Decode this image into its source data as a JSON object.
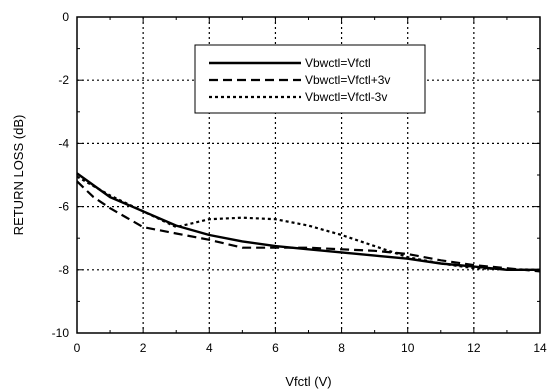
{
  "chart_data": {
    "type": "line",
    "title": "",
    "xlabel": "Vfctl (V)",
    "ylabel": "RETURN LOSS (dB)",
    "xlim": [
      0,
      14
    ],
    "ylim": [
      -10,
      0
    ],
    "xticks": [
      0,
      2,
      4,
      6,
      8,
      10,
      12,
      14
    ],
    "yticks": [
      0,
      -2,
      -4,
      -6,
      -8,
      -10
    ],
    "xtick_labels": [
      "0",
      "2",
      "4",
      "6",
      "8",
      "10",
      "12",
      "14"
    ],
    "ytick_labels": [
      "0",
      "-2",
      "-4",
      "-6",
      "-8",
      "-10"
    ],
    "grid": true,
    "legend_position": "top-right",
    "series": [
      {
        "name": "Vbwctl=Vfctl",
        "style": "solid",
        "x": [
          0,
          1,
          2,
          3,
          4,
          5,
          6,
          7,
          8,
          9,
          10,
          11,
          12,
          13,
          14
        ],
        "y": [
          -4.95,
          -5.7,
          -6.15,
          -6.6,
          -6.9,
          -7.1,
          -7.25,
          -7.35,
          -7.45,
          -7.55,
          -7.65,
          -7.8,
          -7.9,
          -8.0,
          -8.0
        ]
      },
      {
        "name": "Vbwctl=Vfctl+3v",
        "style": "dashed",
        "x": [
          0,
          0.5,
          1,
          2,
          3,
          4,
          5,
          6,
          7,
          8,
          9,
          10,
          11,
          12,
          13,
          14
        ],
        "y": [
          -5.2,
          -5.7,
          -6.05,
          -6.65,
          -6.85,
          -7.05,
          -7.3,
          -7.3,
          -7.3,
          -7.35,
          -7.4,
          -7.5,
          -7.7,
          -7.85,
          -7.95,
          -8.05
        ]
      },
      {
        "name": "Vbwctl=Vfctl-3v",
        "style": "dotted",
        "x": [
          0,
          1,
          2,
          3,
          4,
          5,
          6,
          7,
          8,
          9,
          10,
          11,
          12,
          13,
          14
        ],
        "y": [
          -5.05,
          -5.65,
          -6.15,
          -6.65,
          -6.4,
          -6.35,
          -6.4,
          -6.6,
          -6.9,
          -7.25,
          -7.6,
          -7.8,
          -7.95,
          -7.98,
          -8.0
        ]
      }
    ]
  }
}
